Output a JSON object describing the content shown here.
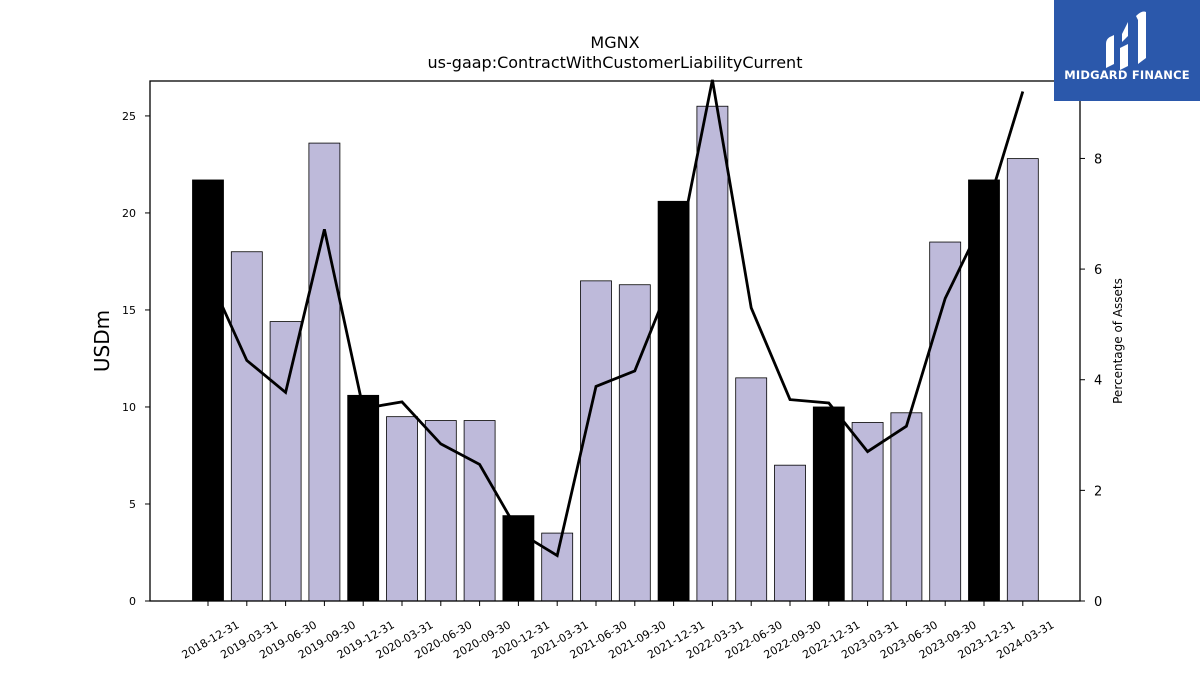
{
  "chart_data": {
    "type": "bar",
    "title": "MGNX",
    "subtitle": "us-gaap:ContractWithCustomerLiabilityCurrent",
    "ylabel": "USDm",
    "y2label": "Percentage of Assets",
    "ylim": [
      0,
      26.8
    ],
    "y2lim": [
      0,
      9.4
    ],
    "yticks": [
      0,
      5,
      10,
      15,
      20,
      25
    ],
    "y2ticks": [
      0,
      2,
      4,
      6,
      8
    ],
    "categories": [
      "2018-12-31",
      "2019-03-31",
      "2019-06-30",
      "2019-09-30",
      "2019-12-31",
      "2020-03-31",
      "2020-06-30",
      "2020-09-30",
      "2020-12-31",
      "2021-03-31",
      "2021-06-30",
      "2021-09-30",
      "2021-12-31",
      "2022-03-31",
      "2022-06-30",
      "2022-09-30",
      "2022-12-31",
      "2023-03-31",
      "2023-06-30",
      "2023-09-30",
      "2023-12-31",
      "2024-03-31"
    ],
    "series": [
      {
        "kind": "bar",
        "values": [
          21.7,
          18.0,
          14.4,
          23.6,
          10.6,
          9.5,
          9.3,
          9.3,
          4.4,
          3.5,
          16.5,
          16.3,
          20.6,
          25.5,
          11.5,
          7.0,
          10.0,
          9.2,
          9.7,
          18.5,
          21.7,
          22.8
        ],
        "year_end": [
          true,
          false,
          false,
          false,
          true,
          false,
          false,
          false,
          true,
          false,
          false,
          false,
          true,
          false,
          false,
          false,
          true,
          false,
          false,
          false,
          true,
          false
        ]
      },
      {
        "kind": "line",
        "axis": "right",
        "values": [
          5.9,
          4.35,
          3.77,
          6.72,
          3.48,
          3.6,
          2.84,
          2.47,
          1.25,
          0.82,
          3.88,
          4.16,
          5.9,
          9.42,
          5.3,
          3.64,
          3.58,
          2.7,
          3.16,
          5.47,
          6.91,
          9.21
        ]
      }
    ],
    "colors": {
      "year_end_bar": "#000000",
      "bar": "#bebada",
      "line": "#000000"
    },
    "grid": false,
    "legend": "none"
  },
  "logo": {
    "text": "MIDGARD FINANCE"
  }
}
